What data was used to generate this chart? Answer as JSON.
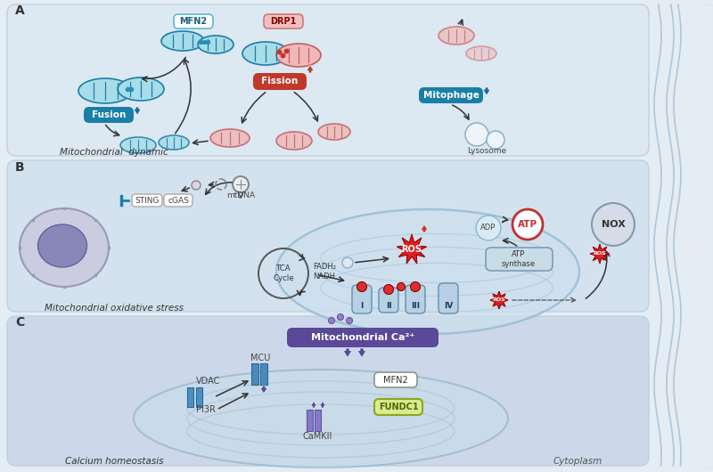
{
  "bg_outer": "#e4ecf4",
  "panel_a_bg": "#dce8f2",
  "panel_b_bg": "#d2e2ef",
  "panel_c_bg": "#ccd8ea",
  "panel_border": "#b8ccd8",
  "teal_dark": "#1a7fa8",
  "teal_mid": "#4aaac8",
  "teal_light": "#8dd4e8",
  "teal_fill": "#a8dce8",
  "red_fill": "#f0b8b8",
  "red_edge": "#c06060",
  "red_dark": "#c0392b",
  "purple_ca": "#5a4898",
  "purple_light": "#8878c0",
  "teal_channel": "#4a90b8",
  "blue_channel": "#3a78a8",
  "green_fundc1_bg": "#d8ec90",
  "green_fundc1_edge": "#88a820",
  "gray_text": "#444444",
  "title_a": "Mitochondrial  dynamic",
  "title_b": "Mitochondrial oxidative stress",
  "title_c": "Calcium homeostasis",
  "cytoplasm": "Cytoplasm"
}
